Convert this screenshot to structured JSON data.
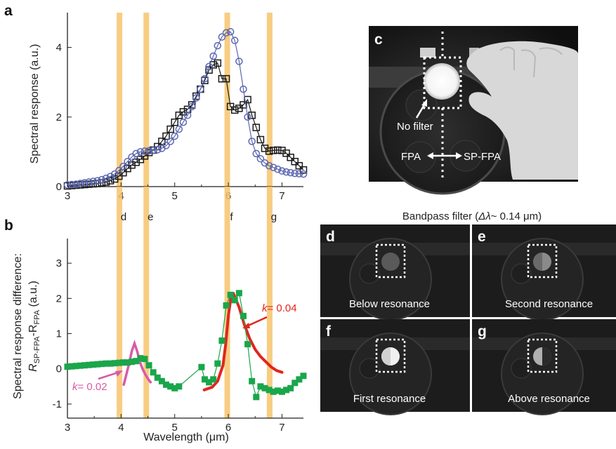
{
  "panels": {
    "a": "a",
    "b": "b",
    "c": "c",
    "d": "d",
    "e": "e",
    "f": "f",
    "g": "g"
  },
  "band_labels": [
    "d",
    "e",
    "f",
    "g"
  ],
  "bandpass_title_prefix": "Bandpass filter (",
  "bandpass_title_delta": "Δλ",
  "bandpass_title_suffix": "~ 0.14 μm)",
  "photo_c": {
    "no_filter": "No filter",
    "fpa": "FPA",
    "sp_fpa": "SP-FPA"
  },
  "photos": {
    "d_caption": "Below resonance",
    "e_caption": "Second resonance",
    "f_caption": "First resonance",
    "g_caption": "Above resonance"
  },
  "fit_labels": {
    "k1_prefix": "k",
    "k1_value": "= 0.02",
    "k2_prefix": "k",
    "k2_value": "= 0.04"
  },
  "colors": {
    "black_series": "#1a1a1a",
    "blue_series": "#5b67b0",
    "green_series": "#1aa64b",
    "magenta_fit": "#d85aa8",
    "red_fit": "#e0261d",
    "band": "#f7c46c"
  },
  "chart_data": [
    {
      "type": "line",
      "panel": "a",
      "ylabel": "Spectral response (a.u.)",
      "xlabel": "",
      "xlim": [
        3,
        7.4
      ],
      "ylim": [
        0,
        5
      ],
      "xticks": [
        "3",
        "4",
        "5",
        "6",
        "7"
      ],
      "yticks": [
        "0",
        "2",
        "4"
      ],
      "bands": [
        3.97,
        4.47,
        5.98,
        6.77
      ],
      "series": [
        {
          "marker": "square",
          "x": [
            3.0,
            3.08,
            3.16,
            3.24,
            3.32,
            3.4,
            3.48,
            3.56,
            3.64,
            3.72,
            3.8,
            3.88,
            3.96,
            4.04,
            4.12,
            4.2,
            4.28,
            4.36,
            4.44,
            4.52,
            4.6,
            4.68,
            4.76,
            4.84,
            4.92,
            5.0,
            5.08,
            5.16,
            5.24,
            5.32,
            5.4,
            5.48,
            5.56,
            5.64,
            5.72,
            5.8,
            5.88,
            5.96,
            6.04,
            6.12,
            6.2,
            6.28,
            6.36,
            6.44,
            6.52,
            6.6,
            6.68,
            6.76,
            6.84,
            6.92,
            7.0,
            7.08,
            7.16,
            7.24,
            7.32,
            7.4
          ],
          "y": [
            0.02,
            0.03,
            0.04,
            0.05,
            0.06,
            0.07,
            0.08,
            0.09,
            0.11,
            0.13,
            0.17,
            0.22,
            0.3,
            0.4,
            0.52,
            0.62,
            0.7,
            0.78,
            0.88,
            0.98,
            1.05,
            1.15,
            1.3,
            1.45,
            1.65,
            1.85,
            2.05,
            2.15,
            2.22,
            2.35,
            2.6,
            2.8,
            3.05,
            3.35,
            3.5,
            3.55,
            3.1,
            3.1,
            2.3,
            2.2,
            2.25,
            2.35,
            2.5,
            2.05,
            1.7,
            1.35,
            1.1,
            1.02,
            1.04,
            1.05,
            1.04,
            0.96,
            0.84,
            0.72,
            0.6,
            0.48
          ]
        },
        {
          "marker": "circle",
          "x": [
            3.0,
            3.08,
            3.16,
            3.24,
            3.32,
            3.4,
            3.48,
            3.56,
            3.64,
            3.72,
            3.8,
            3.88,
            3.96,
            4.04,
            4.12,
            4.2,
            4.28,
            4.36,
            4.44,
            4.52,
            4.6,
            4.68,
            4.76,
            4.84,
            4.92,
            5.0,
            5.08,
            5.16,
            5.24,
            5.32,
            5.4,
            5.48,
            5.56,
            5.64,
            5.72,
            5.8,
            5.88,
            5.96,
            6.04,
            6.12,
            6.2,
            6.28,
            6.36,
            6.44,
            6.52,
            6.6,
            6.68,
            6.76,
            6.84,
            6.92,
            7.0,
            7.08,
            7.16,
            7.24,
            7.32,
            7.4
          ],
          "y": [
            0.05,
            0.06,
            0.07,
            0.09,
            0.11,
            0.13,
            0.15,
            0.17,
            0.2,
            0.24,
            0.29,
            0.36,
            0.46,
            0.58,
            0.72,
            0.85,
            0.95,
            1.0,
            1.02,
            1.03,
            1.04,
            1.06,
            1.1,
            1.18,
            1.3,
            1.45,
            1.65,
            1.85,
            2.05,
            2.3,
            2.55,
            2.8,
            3.1,
            3.45,
            3.75,
            4.05,
            4.3,
            4.42,
            4.45,
            4.2,
            3.6,
            2.8,
            2.0,
            1.3,
            0.95,
            0.8,
            0.68,
            0.6,
            0.55,
            0.5,
            0.45,
            0.42,
            0.4,
            0.38,
            0.37,
            0.36
          ]
        }
      ]
    },
    {
      "type": "scatter",
      "panel": "b",
      "ylabel_line1": "Spectral response difference:",
      "ylabel_r1": "R",
      "ylabel_sub1": "SP-FPA",
      "ylabel_mid": "-R",
      "ylabel_sub2": "FPA",
      "ylabel_unit": " (a.u.)",
      "xlabel": "Wavelength (μm)",
      "xlim": [
        3,
        7.4
      ],
      "ylim": [
        -1.4,
        3.7
      ],
      "xticks": [
        "3",
        "4",
        "5",
        "6",
        "7"
      ],
      "yticks": [
        "-1",
        "0",
        "1",
        "2",
        "3"
      ],
      "bands": [
        3.97,
        4.47,
        5.98,
        6.77
      ],
      "series": [
        {
          "marker": "filled-square",
          "x": [
            3.0,
            3.08,
            3.16,
            3.24,
            3.32,
            3.4,
            3.48,
            3.56,
            3.64,
            3.72,
            3.8,
            3.88,
            3.96,
            4.04,
            4.12,
            4.2,
            4.28,
            4.36,
            4.44,
            4.52,
            4.6,
            4.68,
            4.76,
            4.84,
            4.92,
            5.0,
            5.08,
            5.5,
            5.56,
            5.64,
            5.72,
            5.8,
            5.88,
            5.96,
            6.04,
            6.12,
            6.2,
            6.28,
            6.36,
            6.44,
            6.52,
            6.6,
            6.68,
            6.76,
            6.84,
            6.92,
            7.0,
            7.08,
            7.16,
            7.24,
            7.32,
            7.4
          ],
          "y": [
            0.06,
            0.07,
            0.08,
            0.09,
            0.1,
            0.11,
            0.12,
            0.13,
            0.14,
            0.15,
            0.15,
            0.16,
            0.17,
            0.18,
            0.18,
            0.2,
            0.22,
            0.3,
            0.28,
            0.1,
            -0.1,
            -0.25,
            -0.35,
            -0.45,
            -0.5,
            -0.55,
            -0.5,
            0.05,
            -0.3,
            -0.38,
            -0.3,
            0.15,
            0.8,
            1.8,
            2.1,
            1.95,
            2.15,
            1.5,
            0.7,
            -0.35,
            -0.8,
            -0.5,
            -0.55,
            -0.6,
            -0.65,
            -0.62,
            -0.65,
            -0.6,
            -0.55,
            -0.4,
            -0.3,
            -0.2
          ]
        }
      ],
      "fits": [
        {
          "name": "k = 0.02",
          "x": [
            4.05,
            4.1,
            4.15,
            4.2,
            4.25,
            4.3,
            4.35,
            4.4,
            4.45,
            4.5,
            4.55
          ],
          "y": [
            -0.45,
            -0.15,
            0.15,
            0.5,
            0.72,
            0.5,
            0.2,
            0.0,
            -0.15,
            -0.28,
            -0.38
          ]
        },
        {
          "name": "k = 0.04",
          "x": [
            5.55,
            5.7,
            5.8,
            5.9,
            5.95,
            6.0,
            6.05,
            6.1,
            6.2,
            6.3,
            6.4,
            6.5,
            6.6,
            6.7,
            6.8,
            6.9,
            7.0
          ],
          "y": [
            -0.6,
            -0.52,
            -0.35,
            0.1,
            0.7,
            1.5,
            2.05,
            2.12,
            1.75,
            1.25,
            0.85,
            0.55,
            0.35,
            0.2,
            0.05,
            -0.05,
            -0.1
          ]
        }
      ]
    }
  ]
}
